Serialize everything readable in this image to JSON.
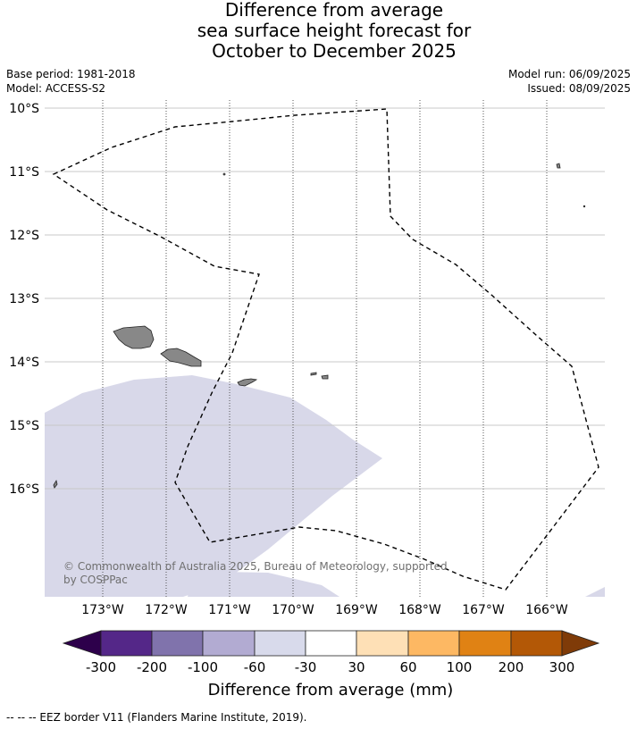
{
  "header": {
    "title_line1": "Difference from average",
    "title_line2": "sea surface height forecast for",
    "title_line3": "October to December 2025",
    "base_period": "Base period: 1981-2018",
    "model": "Model: ACCESS-S2",
    "model_run": "Model run: 06/09/2025",
    "issued": "Issued: 08/09/2025"
  },
  "map": {
    "lat_labels": [
      "10°S",
      "11°S",
      "12°S",
      "13°S",
      "14°S",
      "15°S",
      "16°S"
    ],
    "lon_labels": [
      "173°W",
      "172°W",
      "171°W",
      "170°W",
      "169°W",
      "168°W",
      "167°W",
      "166°W"
    ],
    "copyright_line1": "© Commonwealth of Australia 2025, Bureau of Meteorology, supported",
    "copyright_line2": "by COSPPac",
    "colors": {
      "land": "#888888",
      "anomaly_fill": "#d8d8e9",
      "eez_line": "#000000"
    }
  },
  "colorbar": {
    "title": "Difference from average (mm)",
    "tick_labels": [
      "-300",
      "-200",
      "-100",
      "-60",
      "-30",
      "30",
      "60",
      "100",
      "200",
      "300"
    ],
    "colors": [
      "#2d004b",
      "#542788",
      "#8073ac",
      "#b2abd2",
      "#d8daeb",
      "#ffffff",
      "#fee0b6",
      "#fdb863",
      "#e08214",
      "#b35806",
      "#7f3b08"
    ]
  },
  "footer": {
    "legend_text": "--  --  -- EEZ border V11 (Flanders Marine Institute, 2019)."
  }
}
